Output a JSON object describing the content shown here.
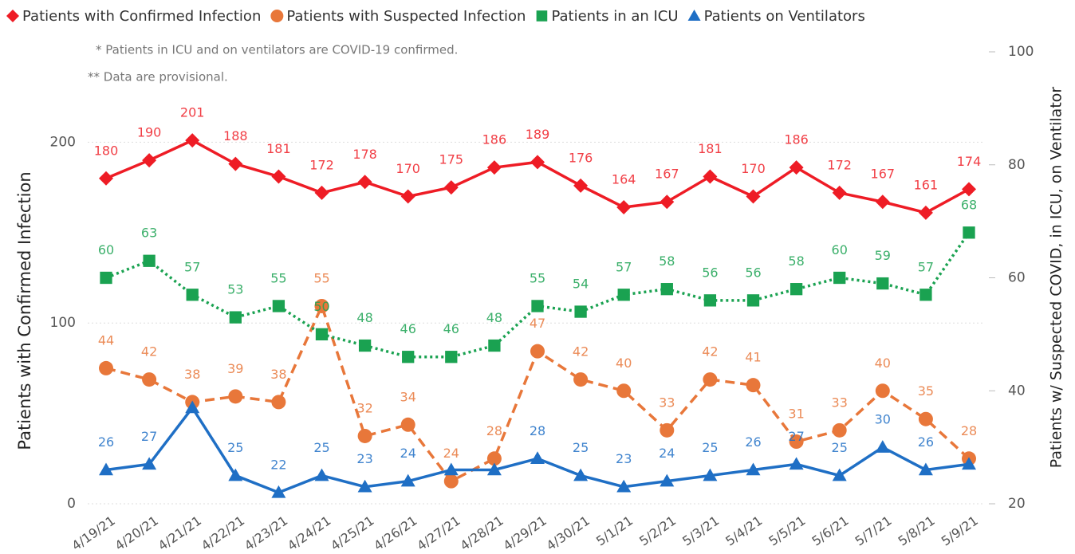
{
  "chart_data": {
    "type": "line",
    "notes": [
      "* Patients in ICU and on ventilators are COVID-19 confirmed.",
      "** Data are provisional."
    ],
    "ylabel": "Patients with Confirmed Infection",
    "y2label": "Patients w/ Suspected COVID, in ICU, on Ventilator",
    "categories": [
      "4/19/21",
      "4/20/21",
      "4/21/21",
      "4/22/21",
      "4/23/21",
      "4/24/21",
      "4/25/21",
      "4/26/21",
      "4/27/21",
      "4/28/21",
      "4/29/21",
      "4/30/21",
      "5/1/21",
      "5/2/21",
      "5/3/21",
      "5/4/21",
      "5/5/21",
      "5/6/21",
      "5/7/21",
      "5/8/21",
      "5/9/21"
    ],
    "ylim": [
      0,
      250
    ],
    "yticks": [
      0,
      100,
      200
    ],
    "y2lim": [
      20,
      100
    ],
    "y2ticks": [
      20,
      40,
      60,
      80,
      100
    ],
    "grid": true,
    "legend": "top",
    "series": [
      {
        "name": "Patients with Confirmed Infection",
        "color": "#ee1c25",
        "marker": "diamond",
        "dash": "solid",
        "values": [
          180,
          190,
          201,
          188,
          181,
          172,
          178,
          170,
          175,
          186,
          189,
          176,
          164,
          167,
          181,
          170,
          186,
          172,
          167,
          161,
          174
        ]
      },
      {
        "name": "Patients with Suspected Infection",
        "color": "#e8773a",
        "marker": "circle",
        "dash": "dashed",
        "axis": "y2",
        "values": [
          44,
          42,
          38,
          39,
          38,
          55,
          32,
          34,
          24,
          28,
          47,
          42,
          40,
          33,
          42,
          41,
          31,
          33,
          40,
          35,
          28
        ]
      },
      {
        "name": "Patients in an ICU",
        "color": "#1aa251",
        "marker": "square",
        "dash": "dotted",
        "axis": "y2",
        "values": [
          60,
          63,
          57,
          53,
          55,
          50,
          48,
          46,
          46,
          48,
          55,
          54,
          57,
          58,
          56,
          56,
          58,
          60,
          59,
          57,
          68
        ]
      },
      {
        "name": "Patients on Ventilators",
        "color": "#1f6fc5",
        "marker": "triangle",
        "dash": "solid",
        "axis": "y2",
        "values": [
          26,
          27,
          37,
          25,
          22,
          25,
          23,
          24,
          26,
          26,
          28,
          25,
          23,
          24,
          25,
          26,
          27,
          25,
          30,
          26,
          27
        ],
        "value_labels": [
          "26",
          "27",
          null,
          "25",
          "22",
          "25",
          "23",
          "24",
          null,
          null,
          "28",
          "25",
          "23",
          "24",
          "25",
          "26",
          "27",
          "25",
          "30",
          "26",
          null
        ]
      }
    ]
  }
}
